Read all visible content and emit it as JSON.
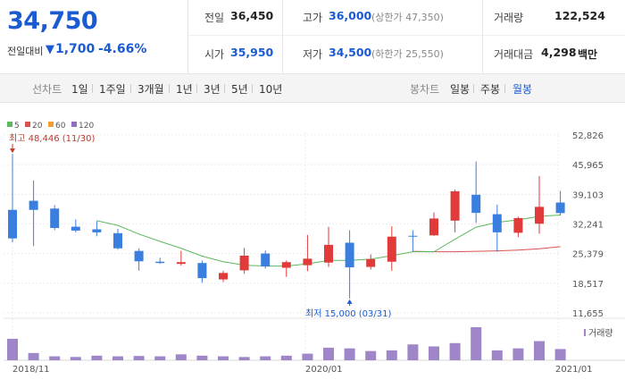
{
  "price": {
    "current": "34,750",
    "change_label": "전일대비",
    "change_arrow": "▼",
    "change": "1,700",
    "change_pct": "-4.66%"
  },
  "info": {
    "prev_close": {
      "label": "전일",
      "value": "36,450"
    },
    "open": {
      "label": "시가",
      "value": "35,950"
    },
    "high": {
      "label": "고가",
      "value": "36,000",
      "sub": "(상한가 47,350)"
    },
    "low": {
      "label": "저가",
      "value": "34,500",
      "sub": "(하한가 25,550)"
    },
    "volume": {
      "label": "거래량",
      "value": "122,524"
    },
    "amount": {
      "label": "거래대금",
      "value": "4,298",
      "unit": "백만"
    }
  },
  "toolbar": {
    "line_chart": "선차트",
    "line_periods": [
      "1일",
      "1주일",
      "3개월",
      "1년",
      "3년",
      "5년",
      "10년"
    ],
    "candle_chart": "봉차트",
    "candle_periods": [
      "일봉",
      "주봉",
      "월봉"
    ],
    "active_candle": "월봉"
  },
  "legend": [
    {
      "label": "5",
      "color": "#5cb85c"
    },
    {
      "label": "20",
      "color": "#d9534f"
    },
    {
      "label": "60",
      "color": "#f0a030"
    },
    {
      "label": "120",
      "color": "#8e6fc0"
    }
  ],
  "chart_data": {
    "type": "candlestick",
    "ylim": [
      11655,
      52826
    ],
    "yticks": [
      "52,826",
      "45,965",
      "39,103",
      "32,241",
      "25,379",
      "18,517",
      "11,655"
    ],
    "xticks": [
      "2018/11",
      "2020/01",
      "2021/01"
    ],
    "volume_label": "거래량",
    "high_annotation": "최고 48,446 (11/30)",
    "low_annotation": "최저 15,000 (03/31)",
    "colors": {
      "up": "#e03a3a",
      "down": "#3a7fe0",
      "volume": "#9f86c8",
      "ma5": "#5cb85c",
      "ma20": "#d9534f"
    },
    "candles": [
      {
        "o": 35500,
        "h": 48446,
        "l": 28000,
        "c": 28900
      },
      {
        "o": 37600,
        "h": 42300,
        "l": 27100,
        "c": 35500
      },
      {
        "o": 35800,
        "h": 36600,
        "l": 30800,
        "c": 31300
      },
      {
        "o": 31600,
        "h": 33300,
        "l": 30300,
        "c": 30700
      },
      {
        "o": 31000,
        "h": 32900,
        "l": 29400,
        "c": 30300
      },
      {
        "o": 30100,
        "h": 31100,
        "l": 26300,
        "c": 26600
      },
      {
        "o": 26000,
        "h": 26600,
        "l": 21400,
        "c": 23600
      },
      {
        "o": 23500,
        "h": 24400,
        "l": 23000,
        "c": 23200
      },
      {
        "o": 23000,
        "h": 26000,
        "l": 22600,
        "c": 23400
      },
      {
        "o": 23200,
        "h": 23800,
        "l": 18600,
        "c": 19700
      },
      {
        "o": 19400,
        "h": 21400,
        "l": 18800,
        "c": 20900
      },
      {
        "o": 21500,
        "h": 26700,
        "l": 20700,
        "c": 24900
      },
      {
        "o": 25400,
        "h": 26100,
        "l": 21900,
        "c": 22400
      },
      {
        "o": 22100,
        "h": 23800,
        "l": 20000,
        "c": 23400
      },
      {
        "o": 22700,
        "h": 29700,
        "l": 21300,
        "c": 24200
      },
      {
        "o": 23300,
        "h": 31600,
        "l": 22300,
        "c": 27400
      },
      {
        "o": 27900,
        "h": 30800,
        "l": 15000,
        "c": 22200
      },
      {
        "o": 22300,
        "h": 25200,
        "l": 21700,
        "c": 24100
      },
      {
        "o": 23500,
        "h": 31700,
        "l": 21400,
        "c": 29300
      },
      {
        "o": 29500,
        "h": 30800,
        "l": 25900,
        "c": 29300
      },
      {
        "o": 29600,
        "h": 34900,
        "l": 29500,
        "c": 33500
      },
      {
        "o": 33000,
        "h": 40200,
        "l": 30300,
        "c": 39800
      },
      {
        "o": 39000,
        "h": 46700,
        "l": 32500,
        "c": 34800
      },
      {
        "o": 34500,
        "h": 36700,
        "l": 25800,
        "c": 30300
      },
      {
        "o": 30200,
        "h": 33900,
        "l": 29200,
        "c": 33600
      },
      {
        "o": 32300,
        "h": 43300,
        "l": 30000,
        "c": 36200
      },
      {
        "o": 37200,
        "h": 39900,
        "l": 34200,
        "c": 34750
      }
    ],
    "ma5": [
      null,
      null,
      null,
      null,
      33000,
      31900,
      29900,
      28200,
      26600,
      24800,
      23500,
      22700,
      22500,
      22500,
      23000,
      23800,
      23800,
      24100,
      24900,
      25800,
      25800,
      28700,
      31500,
      32600,
      33200,
      34000,
      34300
    ],
    "ma20": [
      null,
      null,
      null,
      null,
      null,
      null,
      null,
      null,
      null,
      null,
      null,
      null,
      null,
      null,
      null,
      null,
      null,
      null,
      null,
      25900,
      25800,
      25800,
      25900,
      26000,
      26200,
      26500,
      27000
    ],
    "volume": [
      0.65,
      0.22,
      0.12,
      0.1,
      0.14,
      0.12,
      0.13,
      0.12,
      0.18,
      0.14,
      0.12,
      0.1,
      0.12,
      0.14,
      0.2,
      0.38,
      0.36,
      0.28,
      0.3,
      0.48,
      0.42,
      0.52,
      1.0,
      0.3,
      0.36,
      0.58,
      0.34
    ]
  }
}
